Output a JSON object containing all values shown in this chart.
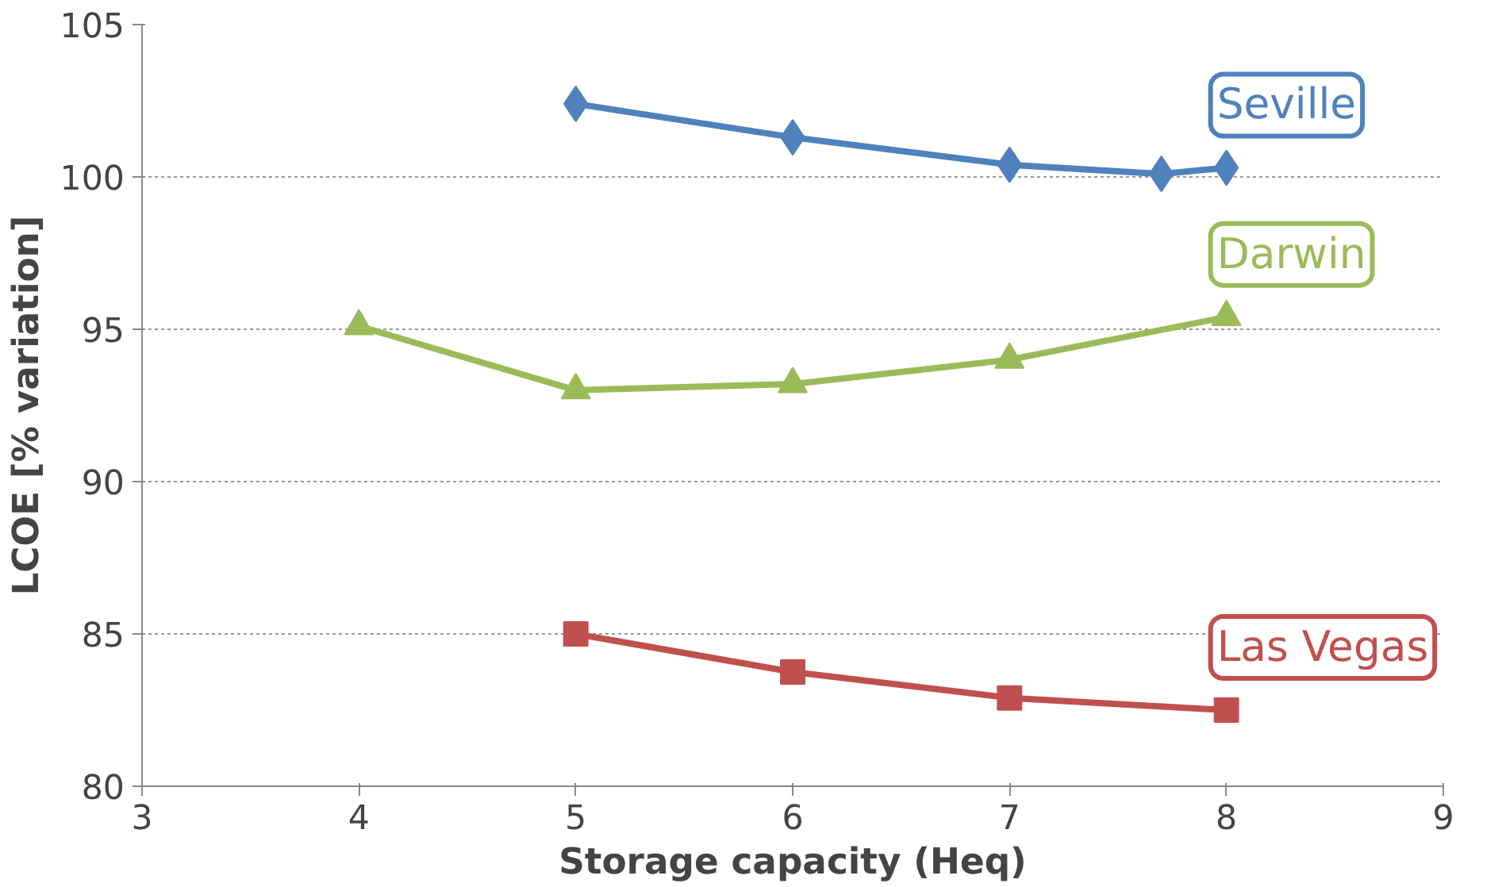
{
  "chart_data": {
    "type": "line",
    "xlabel": "Storage capacity (Heq)",
    "ylabel": "LCOE [% variation]",
    "xlim": [
      3,
      9
    ],
    "xticks": [
      3,
      4,
      5,
      6,
      7,
      8,
      9
    ],
    "ylim": [
      80,
      105
    ],
    "yticks": [
      80,
      85,
      90,
      95,
      100,
      105
    ],
    "grid": "y",
    "series": [
      {
        "name": "Seville",
        "color": "#4f81bd",
        "marker": "diamond",
        "x": [
          5,
          6,
          7,
          7.7,
          8
        ],
        "values": [
          102.4,
          101.3,
          100.4,
          100.1,
          100.3
        ]
      },
      {
        "name": "Darwin",
        "color": "#9bbb59",
        "marker": "triangle",
        "x": [
          4,
          5,
          6,
          7,
          8
        ],
        "values": [
          95.1,
          93.0,
          93.2,
          94.0,
          95.4
        ]
      },
      {
        "name": "Las Vegas",
        "color": "#c0504d",
        "marker": "square",
        "x": [
          5,
          6,
          7,
          8
        ],
        "values": [
          85.0,
          83.75,
          82.9,
          82.5
        ]
      }
    ]
  }
}
